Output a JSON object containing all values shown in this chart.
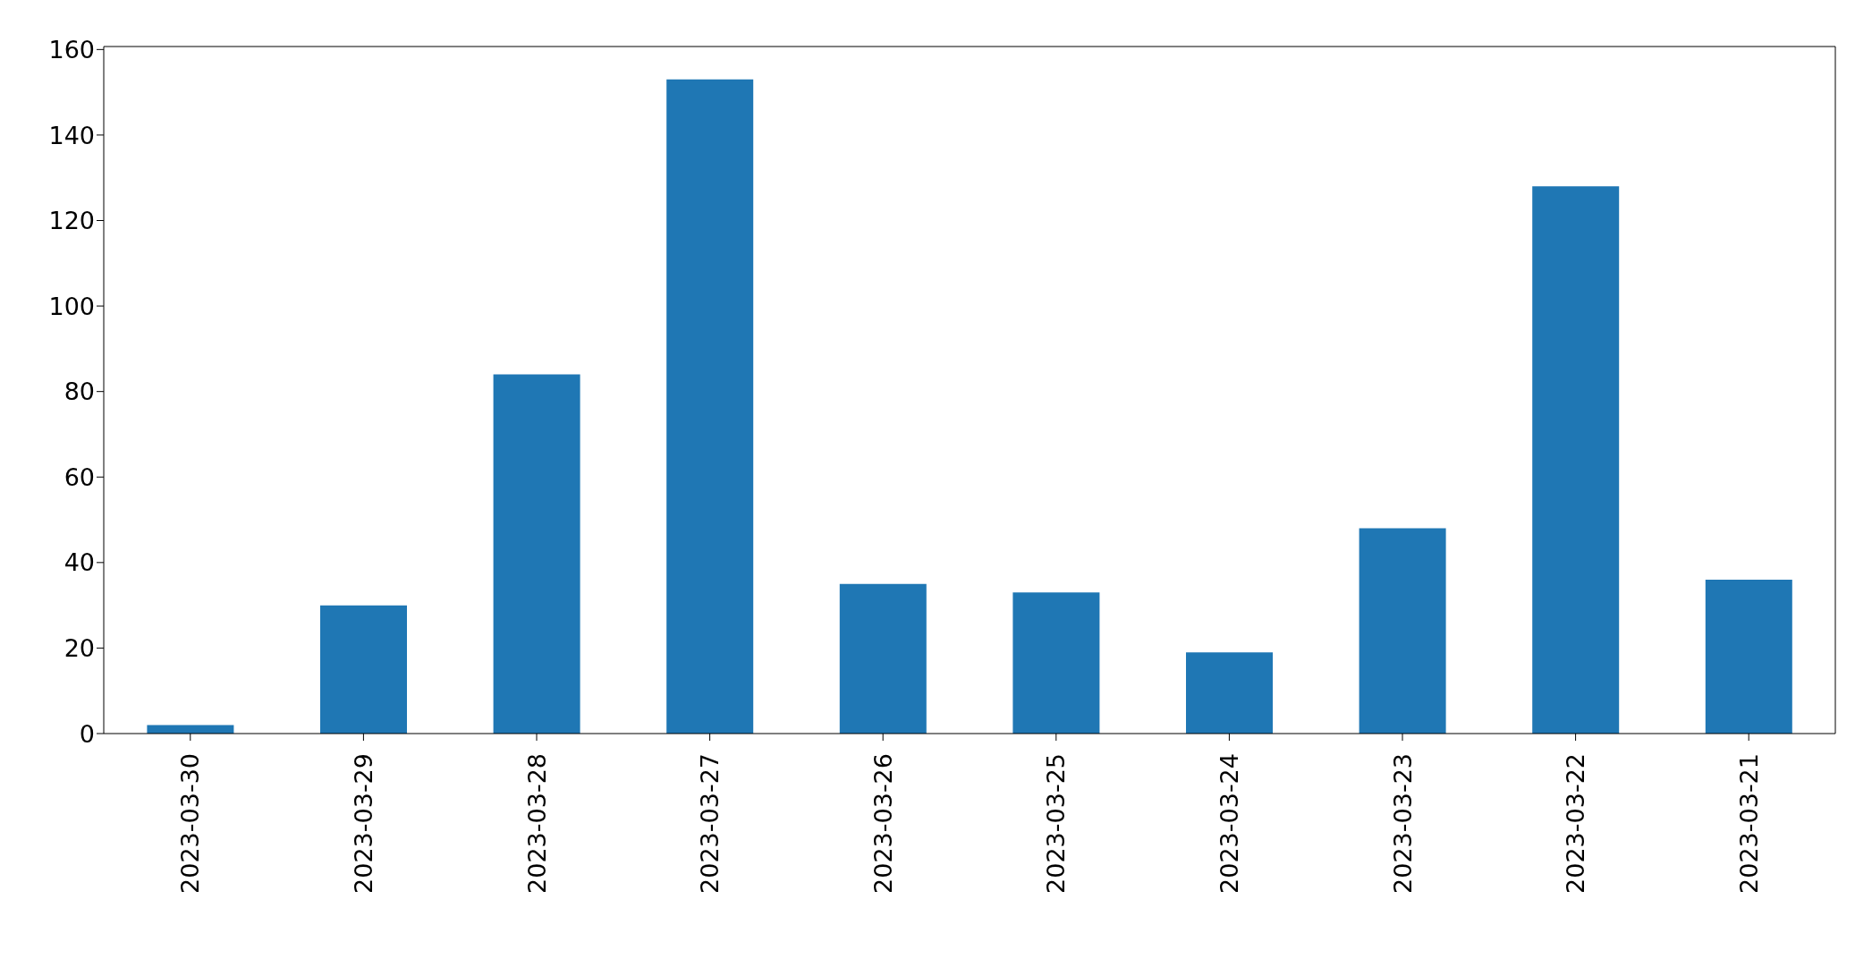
{
  "chart_data": {
    "type": "bar",
    "categories": [
      "2023-03-30",
      "2023-03-29",
      "2023-03-28",
      "2023-03-27",
      "2023-03-26",
      "2023-03-25",
      "2023-03-24",
      "2023-03-23",
      "2023-03-22",
      "2023-03-21"
    ],
    "values": [
      2,
      30,
      84,
      153,
      35,
      33,
      19,
      48,
      128,
      36
    ],
    "color": "#1f77b4",
    "ylim": [
      0,
      160.7
    ],
    "yticks": [
      0,
      20,
      40,
      60,
      80,
      100,
      120,
      140,
      160
    ],
    "grid": false,
    "legend": false
  }
}
